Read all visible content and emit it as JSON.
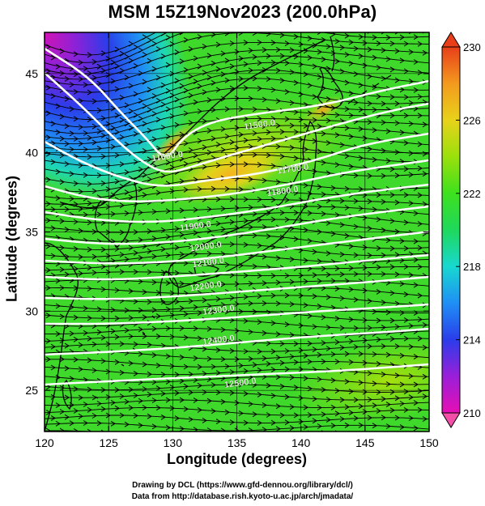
{
  "title": "MSM 15Z19Nov2023 (200.0hPa)",
  "x_axis": {
    "label": "Longitude (degrees)",
    "range": [
      120,
      150
    ],
    "ticks": [
      120,
      125,
      130,
      135,
      140,
      145,
      150
    ],
    "tick_labels": [
      "120",
      "125",
      "130",
      "135",
      "140",
      "145",
      "150"
    ]
  },
  "y_axis": {
    "label": "Latitude  (degrees)",
    "range": [
      22.4,
      47.6
    ],
    "ticks": [
      25,
      30,
      35,
      40,
      45
    ],
    "tick_labels": [
      "25",
      "30",
      "35",
      "40",
      "45"
    ]
  },
  "colorbar": {
    "range": [
      210,
      230
    ],
    "ticks": [
      210,
      214,
      218,
      222,
      226,
      230
    ],
    "tick_labels": [
      "210",
      "214",
      "218",
      "222",
      "226",
      "230"
    ],
    "colors": [
      "#e60fb4",
      "#9a1fd8",
      "#2a3dea",
      "#1f8ff5",
      "#18d8d0",
      "#1fd85c",
      "#3ee01e",
      "#9ae00c",
      "#e8d21a",
      "#f39a1e",
      "#e83f1a"
    ]
  },
  "contours": {
    "labels": [
      {
        "text": "11500.0",
        "lon": 136.8,
        "lat": 41.6
      },
      {
        "text": "11600.0",
        "lon": 129.6,
        "lat": 39.6
      },
      {
        "text": "11700.0",
        "lon": 139.4,
        "lat": 38.8
      },
      {
        "text": "11800.0",
        "lon": 138.6,
        "lat": 37.4
      },
      {
        "text": "11900.0",
        "lon": 131.8,
        "lat": 35.2
      },
      {
        "text": "12000.0",
        "lon": 132.6,
        "lat": 33.9
      },
      {
        "text": "12100.0",
        "lon": 132.8,
        "lat": 32.9
      },
      {
        "text": "12200.0",
        "lon": 132.6,
        "lat": 31.4
      },
      {
        "text": "12300.0",
        "lon": 133.6,
        "lat": 29.9
      },
      {
        "text": "12400.0",
        "lon": 133.6,
        "lat": 28.0
      },
      {
        "text": "12500.0",
        "lon": 135.3,
        "lat": 25.3
      }
    ]
  },
  "credits": {
    "line1": "Drawing by DCL (https://www.gfd-dennou.org/library/dcl/)",
    "line2": "Data from http://database.rish.kyoto-u.ac.jp/arch/jmadata/"
  }
}
